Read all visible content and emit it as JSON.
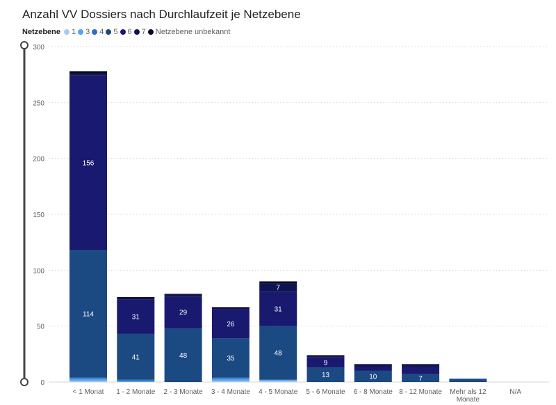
{
  "chart_data": {
    "type": "bar",
    "stacked": true,
    "title": "Anzahl VV Dossiers nach Durchlaufzeit je Netzebene",
    "legend_title": "Netzebene",
    "legend_position": "top-left",
    "grid": true,
    "ylim": [
      0,
      300
    ],
    "yticks": [
      "0",
      "50",
      "100",
      "150",
      "200",
      "250",
      "300"
    ],
    "categories": [
      "< 1 Monat",
      "1 - 2 Monate",
      "2 - 3 Monate",
      "3 - 4 Monate",
      "4 - 5 Monate",
      "5 - 6 Monate",
      "6 - 8 Monate",
      "8 - 12 Monate",
      "Mehr als 12 Monate",
      "N/A"
    ],
    "series": [
      {
        "name": "1",
        "color": "#a6cbf5",
        "values": [
          1,
          0,
          0,
          1,
          1,
          0,
          0,
          0,
          0,
          0
        ]
      },
      {
        "name": "3",
        "color": "#5ba3ea",
        "values": [
          2,
          1,
          0,
          2,
          1,
          0,
          0,
          0,
          0,
          0
        ]
      },
      {
        "name": "4",
        "color": "#2e6fc0",
        "values": [
          1,
          1,
          0,
          1,
          0,
          0,
          0,
          0,
          0,
          0
        ]
      },
      {
        "name": "5",
        "color": "#1b4a83",
        "values": [
          114,
          41,
          48,
          35,
          48,
          13,
          10,
          7,
          3,
          0
        ]
      },
      {
        "name": "6",
        "color": "#191970",
        "values": [
          156,
          31,
          29,
          26,
          31,
          9,
          4,
          7,
          0,
          0
        ]
      },
      {
        "name": "7",
        "color": "#0d1454",
        "values": [
          2,
          1,
          1,
          1,
          7,
          1,
          1,
          1,
          0,
          0
        ]
      },
      {
        "name": "Netzebene unbekannt",
        "color": "#080a2a",
        "values": [
          2,
          1,
          1,
          1,
          2,
          1,
          1,
          1,
          0,
          0
        ]
      }
    ],
    "data_labels": [
      {
        "category": 0,
        "series": 3,
        "text": "114"
      },
      {
        "category": 0,
        "series": 4,
        "text": "156"
      },
      {
        "category": 1,
        "series": 3,
        "text": "41"
      },
      {
        "category": 1,
        "series": 4,
        "text": "31"
      },
      {
        "category": 2,
        "series": 3,
        "text": "48"
      },
      {
        "category": 2,
        "series": 4,
        "text": "29"
      },
      {
        "category": 3,
        "series": 3,
        "text": "35"
      },
      {
        "category": 3,
        "series": 4,
        "text": "26"
      },
      {
        "category": 4,
        "series": 3,
        "text": "48"
      },
      {
        "category": 4,
        "series": 4,
        "text": "31"
      },
      {
        "category": 4,
        "series": 5,
        "text": "7"
      },
      {
        "category": 5,
        "series": 3,
        "text": "13"
      },
      {
        "category": 5,
        "series": 4,
        "text": "9"
      },
      {
        "category": 6,
        "series": 3,
        "text": "10"
      },
      {
        "category": 7,
        "series": 3,
        "text": "7"
      }
    ]
  }
}
